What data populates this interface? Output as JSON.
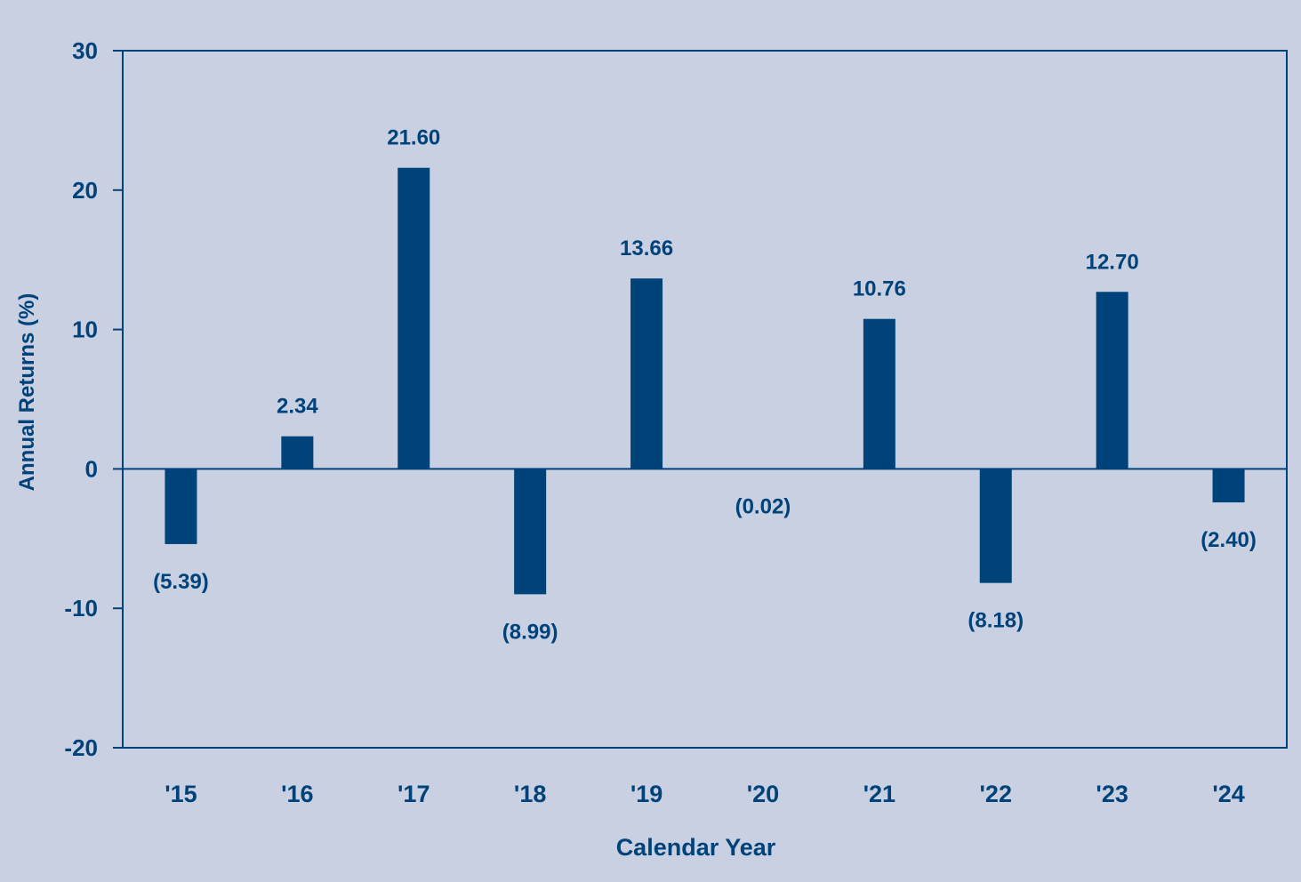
{
  "chart_data": {
    "type": "bar",
    "title": "",
    "xlabel": "Calendar Year",
    "ylabel": "Annual Returns (%)",
    "ylim": [
      -20,
      30
    ],
    "yticks": [
      30,
      20,
      10,
      0,
      -10,
      -20
    ],
    "categories": [
      "'15",
      "'16",
      "'17",
      "'18",
      "'19",
      "'20",
      "'21",
      "'22",
      "'23",
      "'24"
    ],
    "values": [
      -5.39,
      2.34,
      21.6,
      -8.99,
      13.66,
      -0.02,
      10.76,
      -8.18,
      12.7,
      -2.4
    ],
    "data_labels": [
      "(5.39)",
      "2.34",
      "21.60",
      "(8.99)",
      "13.66",
      "(0.02)",
      "10.76",
      "(8.18)",
      "12.70",
      "(2.40)"
    ],
    "grid": false,
    "legend": "none",
    "colors": {
      "background": "#c8d0e2",
      "bar": "#00427a",
      "text": "#00427a",
      "axis": "#00427a"
    }
  }
}
